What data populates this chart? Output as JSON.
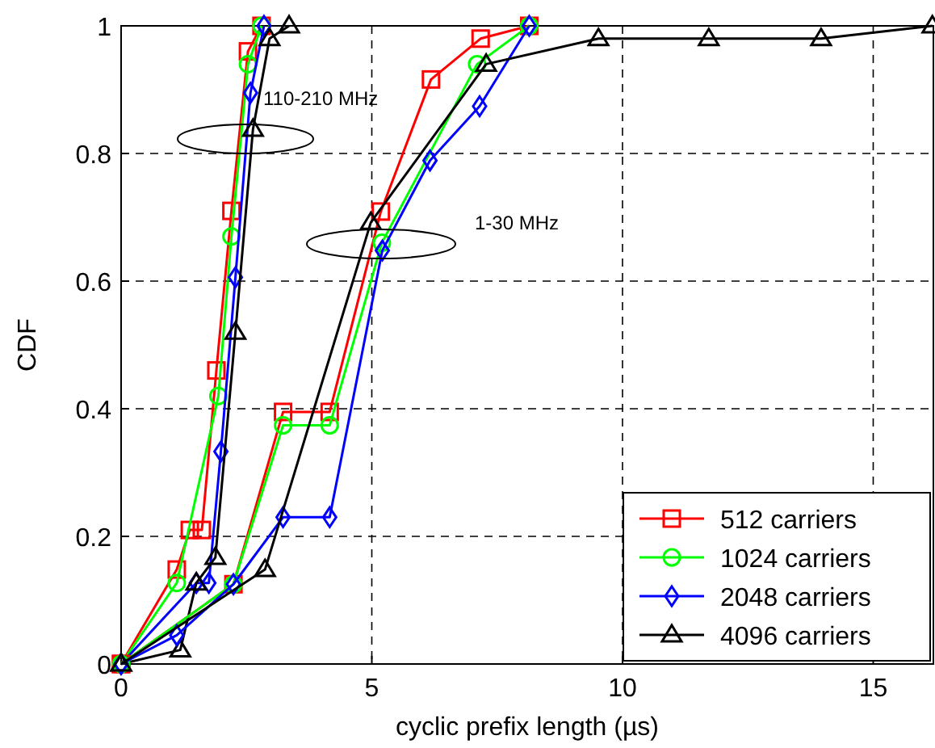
{
  "chart_data": {
    "type": "line",
    "xlabel": "cyclic prefix length (µs)",
    "ylabel": "CDF",
    "xlim": [
      0,
      16.2
    ],
    "ylim": [
      0,
      1
    ],
    "xticks": [
      0,
      5,
      10,
      15
    ],
    "yticks": [
      0,
      0.2,
      0.4,
      0.6,
      0.8,
      1
    ],
    "grid": true,
    "legend": "bottom right",
    "line_style": "solid",
    "annotations": [
      "110-210 MHz",
      "1-30 MHz"
    ],
    "series": [
      {
        "name": "512 carriers",
        "color": "#ff0000",
        "marker": "square",
        "x": [
          0,
          1.11,
          1.37,
          1.61,
          1.9,
          2.2,
          2.53,
          2.8
        ],
        "values": [
          0,
          0.148,
          0.21,
          0.21,
          0.46,
          0.71,
          0.96,
          1
        ]
      },
      {
        "name": "1024 carriers",
        "color": "#00ff00",
        "marker": "circle",
        "x": [
          0,
          1.11,
          1.94,
          2.2,
          2.53,
          2.8
        ],
        "values": [
          0,
          0.127,
          0.42,
          0.67,
          0.94,
          1
        ]
      },
      {
        "name": "2048 carriers",
        "color": "#0000ff",
        "marker": "diamond",
        "x": [
          0,
          1.5,
          1.75,
          1.99,
          2.28,
          2.58,
          2.85
        ],
        "values": [
          0,
          0.127,
          0.127,
          0.333,
          0.606,
          0.895,
          1
        ]
      },
      {
        "name": "4096 carriers",
        "color": "#000000",
        "marker": "triangle",
        "x": [
          0,
          1.18,
          1.5,
          1.88,
          2.28,
          2.63,
          2.96,
          3.35
        ],
        "values": [
          0,
          0.022,
          0.127,
          0.167,
          0.52,
          0.838,
          0.98,
          1
        ]
      },
      {
        "color": "#ff0000",
        "marker": "square",
        "x": [
          0,
          2.24,
          3.23,
          4.16,
          5.18,
          6.18,
          7.17,
          8.14
        ],
        "values": [
          0,
          0.125,
          0.395,
          0.395,
          0.709,
          0.916,
          0.98,
          1
        ]
      },
      {
        "color": "#00ff00",
        "marker": "circle",
        "x": [
          0,
          2.24,
          3.23,
          4.16,
          5.2,
          7.1,
          8.14
        ],
        "values": [
          0,
          0.125,
          0.374,
          0.374,
          0.66,
          0.94,
          1
        ]
      },
      {
        "color": "#0000ff",
        "marker": "diamond",
        "x": [
          0,
          1.11,
          2.24,
          3.23,
          4.16,
          5.21,
          6.16,
          7.15,
          8.14
        ],
        "values": [
          0,
          0.045,
          0.125,
          0.23,
          0.23,
          0.648,
          0.789,
          0.874,
          1
        ]
      },
      {
        "color": "#000000",
        "marker": "triangle",
        "x": [
          0,
          2.87,
          4.98,
          7.28,
          9.52,
          11.72,
          13.96,
          16.18
        ],
        "values": [
          0,
          0.148,
          0.692,
          0.94,
          0.98,
          0.98,
          0.98,
          1
        ]
      }
    ]
  }
}
